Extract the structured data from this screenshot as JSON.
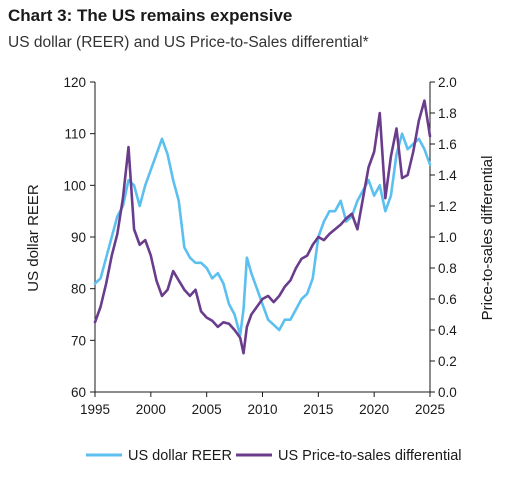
{
  "chart_data": {
    "type": "line",
    "title": "Chart 3: The US remains expensive",
    "subtitle": "US dollar (REER) and US Price-to-Sales differential*",
    "ylabel_left": "US dollar REER",
    "ylabel_right": "Price-to-sales differential",
    "xlim": [
      1995,
      2025
    ],
    "ylim_left": [
      60,
      120
    ],
    "ylim_right": [
      0.0,
      2.0
    ],
    "x_ticks": [
      "1995",
      "2000",
      "2005",
      "2010",
      "2015",
      "2020",
      "2025"
    ],
    "y_left_ticks": [
      "60",
      "70",
      "80",
      "90",
      "100",
      "110",
      "120"
    ],
    "y_right_ticks": [
      "0.0",
      "0.2",
      "0.4",
      "0.6",
      "0.8",
      "1.0",
      "1.2",
      "1.4",
      "1.6",
      "1.8",
      "2.0"
    ],
    "grid": false,
    "legend_position": "bottom",
    "series": [
      {
        "name": "US dollar REER",
        "axis": "left",
        "color": "#5bc0f0",
        "x": [
          1995.0,
          1995.5,
          1996.0,
          1996.5,
          1997.0,
          1997.5,
          1998.0,
          1998.5,
          1999.0,
          1999.5,
          2000.0,
          2000.5,
          2001.0,
          2001.5,
          2002.0,
          2002.5,
          2003.0,
          2003.5,
          2004.0,
          2004.5,
          2005.0,
          2005.5,
          2006.0,
          2006.5,
          2007.0,
          2007.5,
          2008.0,
          2008.3,
          2008.6,
          2009.0,
          2009.5,
          2010.0,
          2010.5,
          2011.0,
          2011.5,
          2012.0,
          2012.5,
          2013.0,
          2013.5,
          2014.0,
          2014.5,
          2015.0,
          2015.5,
          2016.0,
          2016.5,
          2017.0,
          2017.5,
          2018.0,
          2018.5,
          2019.0,
          2019.5,
          2020.0,
          2020.5,
          2021.0,
          2021.5,
          2022.0,
          2022.5,
          2023.0,
          2023.5,
          2024.0,
          2024.5,
          2025.0
        ],
        "y": [
          81,
          82,
          86,
          90,
          94,
          96,
          101,
          100,
          96,
          100,
          103,
          106,
          109,
          106,
          101,
          97,
          88,
          86,
          85,
          85,
          84,
          82,
          83,
          81,
          77,
          75,
          71,
          76,
          86,
          83,
          80,
          77,
          74,
          73,
          72,
          74,
          74,
          76,
          78,
          79,
          82,
          90,
          93,
          95,
          95,
          97,
          93,
          94,
          97,
          99,
          101,
          98,
          100,
          95,
          98,
          106,
          110,
          107,
          108,
          109,
          107,
          104
        ]
      },
      {
        "name": "US Price-to-sales differential",
        "axis": "right",
        "color": "#6a3d8c",
        "x": [
          1995.0,
          1995.5,
          1996.0,
          1996.5,
          1997.0,
          1997.5,
          1998.0,
          1998.5,
          1999.0,
          1999.5,
          2000.0,
          2000.5,
          2001.0,
          2001.5,
          2002.0,
          2002.5,
          2003.0,
          2003.5,
          2004.0,
          2004.5,
          2005.0,
          2005.5,
          2006.0,
          2006.5,
          2007.0,
          2007.5,
          2008.0,
          2008.3,
          2008.6,
          2009.0,
          2009.5,
          2010.0,
          2010.5,
          2011.0,
          2011.5,
          2012.0,
          2012.5,
          2013.0,
          2013.5,
          2014.0,
          2014.5,
          2015.0,
          2015.5,
          2016.0,
          2016.5,
          2017.0,
          2017.5,
          2018.0,
          2018.5,
          2019.0,
          2019.5,
          2020.0,
          2020.5,
          2021.0,
          2021.5,
          2022.0,
          2022.5,
          2023.0,
          2023.5,
          2024.0,
          2024.5,
          2025.0
        ],
        "y": [
          0.45,
          0.55,
          0.7,
          0.88,
          1.02,
          1.25,
          1.58,
          1.05,
          0.95,
          0.98,
          0.88,
          0.72,
          0.62,
          0.66,
          0.78,
          0.72,
          0.66,
          0.62,
          0.66,
          0.52,
          0.48,
          0.46,
          0.42,
          0.45,
          0.44,
          0.4,
          0.35,
          0.25,
          0.42,
          0.5,
          0.55,
          0.6,
          0.62,
          0.58,
          0.62,
          0.68,
          0.72,
          0.8,
          0.86,
          0.88,
          0.95,
          1.0,
          0.98,
          1.02,
          1.05,
          1.08,
          1.12,
          1.15,
          1.05,
          1.25,
          1.45,
          1.55,
          1.8,
          1.25,
          1.52,
          1.7,
          1.38,
          1.4,
          1.55,
          1.75,
          1.88,
          1.65
        ]
      }
    ]
  },
  "colors": {
    "reer": "#5bc0f0",
    "ps": "#6a3d8c",
    "axis": "#1a1a1a"
  }
}
